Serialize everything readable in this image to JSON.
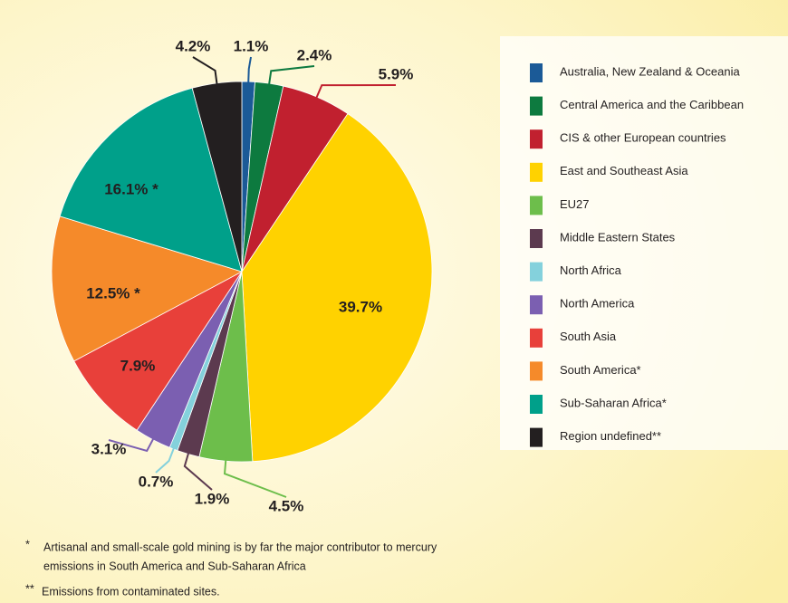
{
  "chart_data": {
    "type": "pie",
    "categories": [
      "Australia, New Zealand & Oceania",
      "Central America and the Caribbean",
      "CIS & other European countries",
      "East and Southeast Asia",
      "EU27",
      "Middle Eastern States",
      "North Africa",
      "North America",
      "South Asia",
      "South America*",
      "Sub-Saharan Africa*",
      "Region undefined**"
    ],
    "values": [
      1.1,
      2.4,
      5.9,
      39.7,
      4.5,
      1.9,
      0.7,
      3.1,
      7.9,
      12.5,
      16.1,
      4.2
    ],
    "value_labels": [
      "1.1%",
      "2.4%",
      "5.9%",
      "39.7%",
      "4.5%",
      "1.9%",
      "0.7%",
      "3.1%",
      "7.9%",
      "12.5% *",
      "16.1% *",
      "4.2%"
    ],
    "colors": [
      "#1b5a97",
      "#0d7a3f",
      "#c1202f",
      "#ffd200",
      "#6dbe4b",
      "#5c3a4f",
      "#84d1dc",
      "#7b5fb1",
      "#e8403a",
      "#f58a2a",
      "#00a08a",
      "#231f20"
    ],
    "legend": "right",
    "notes": [
      {
        "marker": "*",
        "text": "Artisanal and small-scale gold mining is by far the major contributor to mercury"
      },
      {
        "marker": "",
        "text": "emissions in South America and Sub-Saharan Africa"
      },
      {
        "marker": "**",
        "text": "Emissions from contaminated sites."
      }
    ]
  }
}
